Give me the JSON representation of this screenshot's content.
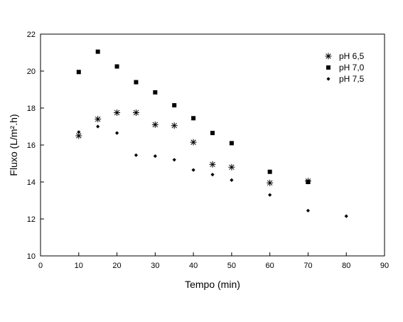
{
  "chart_data": {
    "type": "scatter",
    "xlabel": "Tempo (min)",
    "ylabel": "Fluxo (L/m².h)",
    "xlim": [
      0,
      90
    ],
    "ylim": [
      10,
      22
    ],
    "xticks": [
      0,
      10,
      20,
      30,
      40,
      50,
      60,
      70,
      80,
      90
    ],
    "yticks": [
      10,
      12,
      14,
      16,
      18,
      20,
      22
    ],
    "grid": false,
    "legend_position": "top-right",
    "series": [
      {
        "name": "pH 6,5",
        "marker": "asterisk",
        "color": "#000000",
        "points": [
          [
            10,
            16.5
          ],
          [
            15,
            17.4
          ],
          [
            20,
            17.75
          ],
          [
            25,
            17.75
          ],
          [
            30,
            17.1
          ],
          [
            35,
            17.05
          ],
          [
            40,
            16.15
          ],
          [
            45,
            14.95
          ],
          [
            50,
            14.8
          ],
          [
            60,
            13.95
          ],
          [
            70,
            14.05
          ]
        ]
      },
      {
        "name": "pH 7,0",
        "marker": "square",
        "color": "#000000",
        "points": [
          [
            10,
            19.95
          ],
          [
            15,
            21.05
          ],
          [
            20,
            20.25
          ],
          [
            25,
            19.4
          ],
          [
            30,
            18.85
          ],
          [
            35,
            18.15
          ],
          [
            40,
            17.45
          ],
          [
            45,
            16.65
          ],
          [
            50,
            16.1
          ],
          [
            60,
            14.55
          ],
          [
            70,
            14.0
          ]
        ]
      },
      {
        "name": "pH 7,5",
        "marker": "diamond",
        "color": "#000000",
        "points": [
          [
            10,
            16.7
          ],
          [
            15,
            17.0
          ],
          [
            20,
            16.65
          ],
          [
            25,
            15.45
          ],
          [
            30,
            15.4
          ],
          [
            35,
            15.2
          ],
          [
            40,
            14.65
          ],
          [
            45,
            14.4
          ],
          [
            50,
            14.1
          ],
          [
            60,
            13.3
          ],
          [
            70,
            12.45
          ],
          [
            80,
            12.15
          ]
        ]
      }
    ]
  }
}
